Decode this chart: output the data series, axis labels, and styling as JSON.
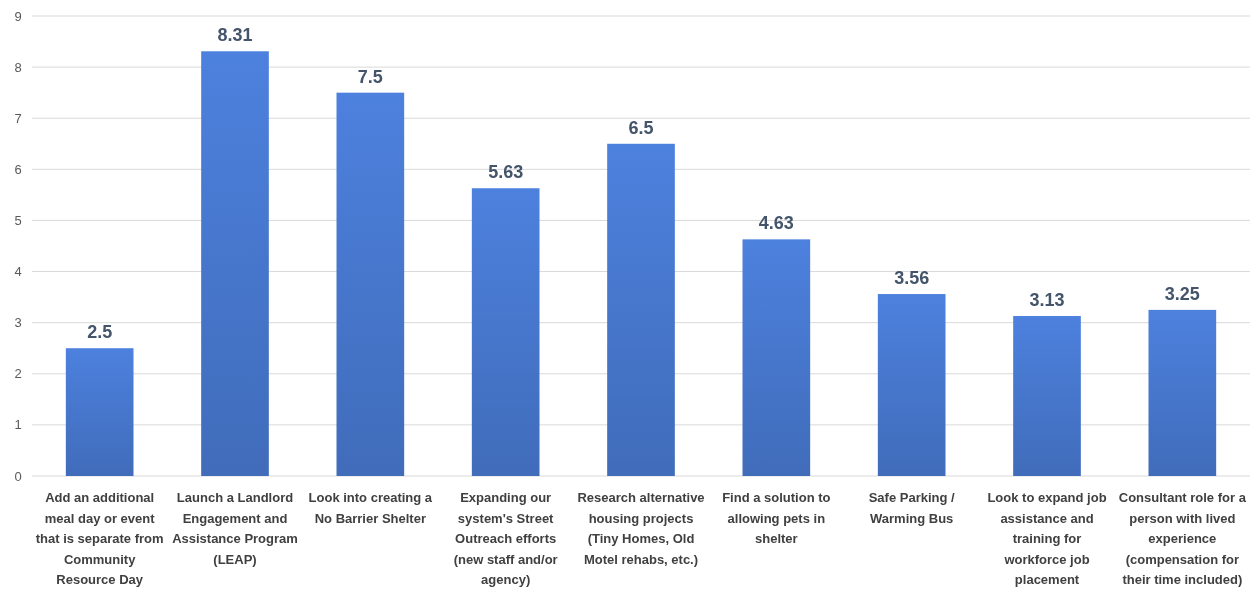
{
  "chart_data": {
    "type": "bar",
    "categories": [
      "Add an additional meal day or event that is separate from Community Resource Day",
      "Launch a Landlord Engagement and Assistance Program (LEAP)",
      "Look into creating a No Barrier Shelter",
      "Expanding our system's Street Outreach efforts (new staff and/or agency)",
      "Research alternative housing projects (Tiny Homes, Old Motel rehabs, etc.)",
      "Find a solution to allowing pets in shelter",
      "Safe Parking / Warming Bus",
      "Look to expand job assistance and training for workforce job placement",
      "Consultant role for a person with lived experience (compensation for their time included)"
    ],
    "values": [
      2.5,
      8.31,
      7.5,
      5.63,
      6.5,
      4.63,
      3.56,
      3.13,
      3.25
    ],
    "color": "#4472c4",
    "ylim": [
      0,
      9
    ],
    "yticks": [
      0,
      1,
      2,
      3,
      4,
      5,
      6,
      7,
      8,
      9
    ],
    "grid": "y",
    "data_labels": true
  }
}
